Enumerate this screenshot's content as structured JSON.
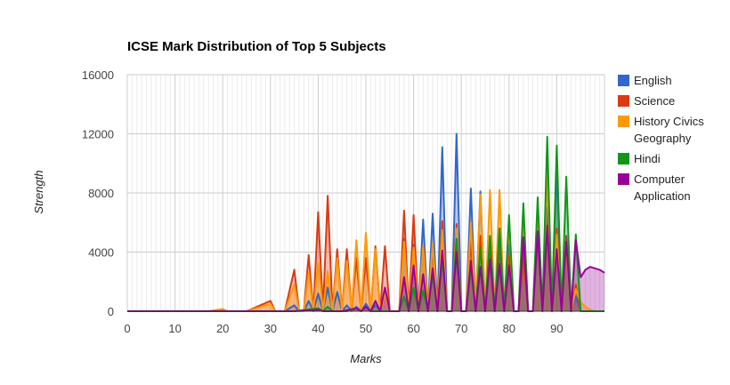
{
  "chart_data": {
    "type": "area",
    "title": "ICSE Mark Distribution of Top 5 Subjects",
    "xlabel": "Marks",
    "ylabel": "Strength",
    "xlim": [
      0,
      100
    ],
    "ylim": [
      0,
      16000
    ],
    "x_ticks": [
      "0",
      "10",
      "20",
      "30",
      "40",
      "50",
      "60",
      "70",
      "80",
      "90"
    ],
    "y_ticks": [
      "0",
      "4000",
      "8000",
      "12000",
      "16000"
    ],
    "grid": true,
    "legend_position": "right",
    "series": [
      {
        "name": "English",
        "legend_lines": [
          "English"
        ],
        "color": "#3366cc",
        "points": [
          [
            0,
            0
          ],
          [
            33,
            0
          ],
          [
            35,
            400
          ],
          [
            36,
            0
          ],
          [
            37,
            0
          ],
          [
            38,
            700
          ],
          [
            39,
            0
          ],
          [
            40,
            1200
          ],
          [
            41,
            0
          ],
          [
            42,
            1600
          ],
          [
            43,
            0
          ],
          [
            44,
            1300
          ],
          [
            45,
            0
          ],
          [
            46,
            400
          ],
          [
            47,
            0
          ],
          [
            48,
            300
          ],
          [
            49,
            0
          ],
          [
            50,
            500
          ],
          [
            51,
            0
          ],
          [
            52,
            400
          ],
          [
            53,
            0
          ],
          [
            54,
            1400
          ],
          [
            55,
            0
          ],
          [
            57,
            0
          ],
          [
            58,
            4900
          ],
          [
            59,
            0
          ],
          [
            60,
            4500
          ],
          [
            61,
            0
          ],
          [
            62,
            6200
          ],
          [
            63,
            0
          ],
          [
            64,
            6600
          ],
          [
            65,
            0
          ],
          [
            66,
            11100
          ],
          [
            67,
            0
          ],
          [
            68,
            0
          ],
          [
            69,
            12000
          ],
          [
            70,
            0
          ],
          [
            71,
            0
          ],
          [
            72,
            8300
          ],
          [
            73,
            0
          ],
          [
            74,
            8100
          ],
          [
            75,
            0
          ],
          [
            76,
            5000
          ],
          [
            77,
            0
          ],
          [
            78,
            4200
          ],
          [
            79,
            0
          ],
          [
            80,
            4500
          ],
          [
            81,
            0
          ],
          [
            82,
            0
          ],
          [
            83,
            4200
          ],
          [
            84,
            0
          ],
          [
            85,
            0
          ],
          [
            86,
            5100
          ],
          [
            87,
            0
          ],
          [
            88,
            7000
          ],
          [
            89,
            0
          ],
          [
            90,
            9800
          ],
          [
            91,
            0
          ],
          [
            92,
            5100
          ],
          [
            93,
            0
          ],
          [
            94,
            1000
          ],
          [
            95,
            0
          ],
          [
            96,
            0
          ],
          [
            100,
            0
          ]
        ]
      },
      {
        "name": "Science",
        "legend_lines": [
          "Science"
        ],
        "color": "#dc3912",
        "points": [
          [
            0,
            0
          ],
          [
            18,
            0
          ],
          [
            20,
            100
          ],
          [
            21,
            0
          ],
          [
            25,
            0
          ],
          [
            30,
            700
          ],
          [
            31,
            0
          ],
          [
            33,
            0
          ],
          [
            35,
            2800
          ],
          [
            36,
            0
          ],
          [
            37,
            0
          ],
          [
            38,
            3800
          ],
          [
            39,
            0
          ],
          [
            40,
            6700
          ],
          [
            41,
            0
          ],
          [
            42,
            7800
          ],
          [
            43,
            0
          ],
          [
            44,
            4200
          ],
          [
            45,
            0
          ],
          [
            46,
            4200
          ],
          [
            47,
            0
          ],
          [
            48,
            3600
          ],
          [
            49,
            0
          ],
          [
            50,
            3600
          ],
          [
            51,
            0
          ],
          [
            52,
            4400
          ],
          [
            53,
            0
          ],
          [
            54,
            4400
          ],
          [
            55,
            0
          ],
          [
            57,
            0
          ],
          [
            58,
            6800
          ],
          [
            59,
            0
          ],
          [
            60,
            6500
          ],
          [
            61,
            0
          ],
          [
            62,
            4400
          ],
          [
            63,
            0
          ],
          [
            64,
            4300
          ],
          [
            65,
            0
          ],
          [
            66,
            6100
          ],
          [
            67,
            0
          ],
          [
            68,
            0
          ],
          [
            69,
            5900
          ],
          [
            70,
            0
          ],
          [
            71,
            0
          ],
          [
            72,
            4800
          ],
          [
            73,
            0
          ],
          [
            74,
            5100
          ],
          [
            75,
            0
          ],
          [
            76,
            4200
          ],
          [
            77,
            0
          ],
          [
            78,
            5000
          ],
          [
            79,
            0
          ],
          [
            80,
            3800
          ],
          [
            81,
            0
          ],
          [
            82,
            0
          ],
          [
            83,
            3800
          ],
          [
            84,
            0
          ],
          [
            85,
            0
          ],
          [
            86,
            5300
          ],
          [
            87,
            0
          ],
          [
            88,
            5600
          ],
          [
            89,
            0
          ],
          [
            90,
            5600
          ],
          [
            91,
            0
          ],
          [
            92,
            5000
          ],
          [
            93,
            0
          ],
          [
            94,
            1800
          ],
          [
            95,
            0
          ],
          [
            96,
            0
          ],
          [
            100,
            0
          ]
        ]
      },
      {
        "name": "History Civics Geography",
        "legend_lines": [
          "History Civics",
          "Geography"
        ],
        "color": "#ff9900",
        "points": [
          [
            0,
            0
          ],
          [
            17,
            0
          ],
          [
            20,
            150
          ],
          [
            21,
            0
          ],
          [
            25,
            0
          ],
          [
            30,
            500
          ],
          [
            31,
            0
          ],
          [
            33,
            0
          ],
          [
            35,
            1800
          ],
          [
            36,
            0
          ],
          [
            37,
            0
          ],
          [
            38,
            2600
          ],
          [
            39,
            0
          ],
          [
            40,
            3300
          ],
          [
            41,
            0
          ],
          [
            42,
            2700
          ],
          [
            43,
            0
          ],
          [
            44,
            3600
          ],
          [
            45,
            0
          ],
          [
            46,
            3400
          ],
          [
            47,
            0
          ],
          [
            48,
            4800
          ],
          [
            49,
            0
          ],
          [
            50,
            5300
          ],
          [
            51,
            0
          ],
          [
            52,
            4200
          ],
          [
            53,
            0
          ],
          [
            54,
            1200
          ],
          [
            55,
            0
          ],
          [
            57,
            0
          ],
          [
            58,
            4700
          ],
          [
            59,
            0
          ],
          [
            60,
            4300
          ],
          [
            61,
            0
          ],
          [
            62,
            4400
          ],
          [
            63,
            0
          ],
          [
            64,
            4600
          ],
          [
            65,
            0
          ],
          [
            66,
            5500
          ],
          [
            67,
            0
          ],
          [
            68,
            0
          ],
          [
            69,
            5600
          ],
          [
            70,
            0
          ],
          [
            71,
            0
          ],
          [
            72,
            6000
          ],
          [
            73,
            0
          ],
          [
            74,
            7900
          ],
          [
            75,
            0
          ],
          [
            76,
            8200
          ],
          [
            77,
            0
          ],
          [
            78,
            8200
          ],
          [
            79,
            0
          ],
          [
            80,
            5900
          ],
          [
            81,
            0
          ],
          [
            82,
            0
          ],
          [
            83,
            6200
          ],
          [
            84,
            0
          ],
          [
            85,
            0
          ],
          [
            86,
            6400
          ],
          [
            87,
            0
          ],
          [
            88,
            9100
          ],
          [
            89,
            0
          ],
          [
            90,
            5200
          ],
          [
            91,
            0
          ],
          [
            92,
            4400
          ],
          [
            93,
            0
          ],
          [
            94,
            1500
          ],
          [
            95,
            600
          ],
          [
            96,
            300
          ],
          [
            97,
            100
          ],
          [
            98,
            0
          ],
          [
            100,
            0
          ]
        ]
      },
      {
        "name": "Hindi",
        "legend_lines": [
          "Hindi"
        ],
        "color": "#109618",
        "points": [
          [
            0,
            0
          ],
          [
            35,
            0
          ],
          [
            40,
            200
          ],
          [
            41,
            0
          ],
          [
            42,
            300
          ],
          [
            43,
            0
          ],
          [
            46,
            0
          ],
          [
            48,
            200
          ],
          [
            49,
            0
          ],
          [
            50,
            300
          ],
          [
            51,
            0
          ],
          [
            54,
            0
          ],
          [
            55,
            0
          ],
          [
            57,
            0
          ],
          [
            58,
            1000
          ],
          [
            59,
            0
          ],
          [
            60,
            1600
          ],
          [
            61,
            0
          ],
          [
            62,
            1400
          ],
          [
            63,
            0
          ],
          [
            64,
            2500
          ],
          [
            65,
            0
          ],
          [
            66,
            3600
          ],
          [
            67,
            0
          ],
          [
            68,
            0
          ],
          [
            69,
            4900
          ],
          [
            70,
            0
          ],
          [
            71,
            0
          ],
          [
            72,
            2900
          ],
          [
            73,
            0
          ],
          [
            74,
            4300
          ],
          [
            75,
            0
          ],
          [
            76,
            5100
          ],
          [
            77,
            0
          ],
          [
            78,
            5600
          ],
          [
            79,
            0
          ],
          [
            80,
            6500
          ],
          [
            81,
            0
          ],
          [
            82,
            0
          ],
          [
            83,
            7300
          ],
          [
            84,
            0
          ],
          [
            85,
            0
          ],
          [
            86,
            7700
          ],
          [
            87,
            0
          ],
          [
            88,
            11800
          ],
          [
            89,
            0
          ],
          [
            90,
            11200
          ],
          [
            91,
            0
          ],
          [
            92,
            9100
          ],
          [
            93,
            0
          ],
          [
            94,
            5200
          ],
          [
            95,
            0
          ],
          [
            96,
            0
          ],
          [
            100,
            0
          ]
        ]
      },
      {
        "name": "Computer Application",
        "legend_lines": [
          "Computer",
          "Application"
        ],
        "color": "#990099",
        "points": [
          [
            0,
            0
          ],
          [
            35,
            0
          ],
          [
            40,
            100
          ],
          [
            41,
            0
          ],
          [
            45,
            0
          ],
          [
            48,
            200
          ],
          [
            49,
            0
          ],
          [
            50,
            300
          ],
          [
            51,
            0
          ],
          [
            52,
            700
          ],
          [
            53,
            0
          ],
          [
            54,
            1600
          ],
          [
            55,
            0
          ],
          [
            57,
            0
          ],
          [
            58,
            2300
          ],
          [
            59,
            0
          ],
          [
            60,
            3100
          ],
          [
            61,
            0
          ],
          [
            62,
            2500
          ],
          [
            63,
            0
          ],
          [
            64,
            2900
          ],
          [
            65,
            0
          ],
          [
            66,
            4100
          ],
          [
            67,
            0
          ],
          [
            68,
            0
          ],
          [
            69,
            4000
          ],
          [
            70,
            0
          ],
          [
            71,
            0
          ],
          [
            72,
            3400
          ],
          [
            73,
            0
          ],
          [
            74,
            3000
          ],
          [
            75,
            0
          ],
          [
            76,
            3500
          ],
          [
            77,
            0
          ],
          [
            78,
            3200
          ],
          [
            79,
            0
          ],
          [
            80,
            3100
          ],
          [
            81,
            0
          ],
          [
            82,
            0
          ],
          [
            83,
            5000
          ],
          [
            84,
            0
          ],
          [
            85,
            0
          ],
          [
            86,
            5400
          ],
          [
            87,
            0
          ],
          [
            88,
            5800
          ],
          [
            89,
            0
          ],
          [
            90,
            4200
          ],
          [
            91,
            0
          ],
          [
            92,
            4700
          ],
          [
            93,
            0
          ],
          [
            94,
            4800
          ],
          [
            95,
            2300
          ],
          [
            96,
            2800
          ],
          [
            97,
            3000
          ],
          [
            98,
            2900
          ],
          [
            99,
            2800
          ],
          [
            100,
            2600
          ]
        ]
      }
    ]
  }
}
